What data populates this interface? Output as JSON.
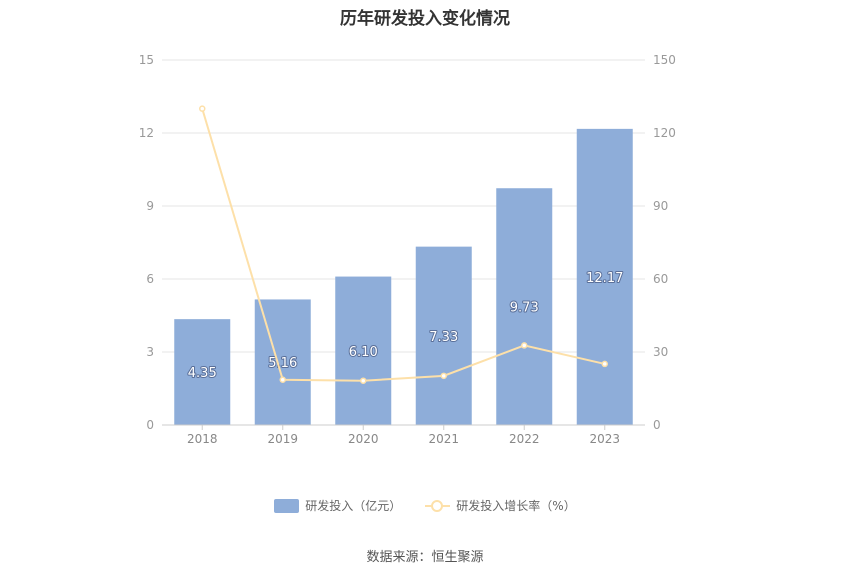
{
  "chart_data": {
    "type": "bar",
    "title": "历年研发投入变化情况",
    "categories": [
      "2018",
      "2019",
      "2020",
      "2021",
      "2022",
      "2023"
    ],
    "series": [
      {
        "name": "研发投入（亿元）",
        "type": "bar",
        "axis": "left",
        "values": [
          4.35,
          5.16,
          6.1,
          7.33,
          9.73,
          12.17
        ],
        "labels": [
          "4.35",
          "5.16",
          "6.10",
          "7.33",
          "9.73",
          "12.17"
        ]
      },
      {
        "name": "研发投入增长率（%）",
        "type": "line",
        "axis": "right",
        "values": [
          130,
          18.6,
          18.2,
          20.2,
          32.7,
          25.1
        ]
      }
    ],
    "y_left": {
      "ylim": [
        0,
        15
      ],
      "ticks": [
        "0",
        "3",
        "6",
        "9",
        "12",
        "15"
      ]
    },
    "y_right": {
      "ylim": [
        0,
        150
      ],
      "ticks": [
        "0",
        "30",
        "60",
        "90",
        "120",
        "150"
      ]
    },
    "grid": true,
    "legend_position": "bottom-center"
  },
  "colors": {
    "bar": "#8eadd9",
    "line": "#fde0a9",
    "grid": "#e6e6e6",
    "axis": "#cccccc"
  },
  "source": "数据来源：恒生聚源"
}
